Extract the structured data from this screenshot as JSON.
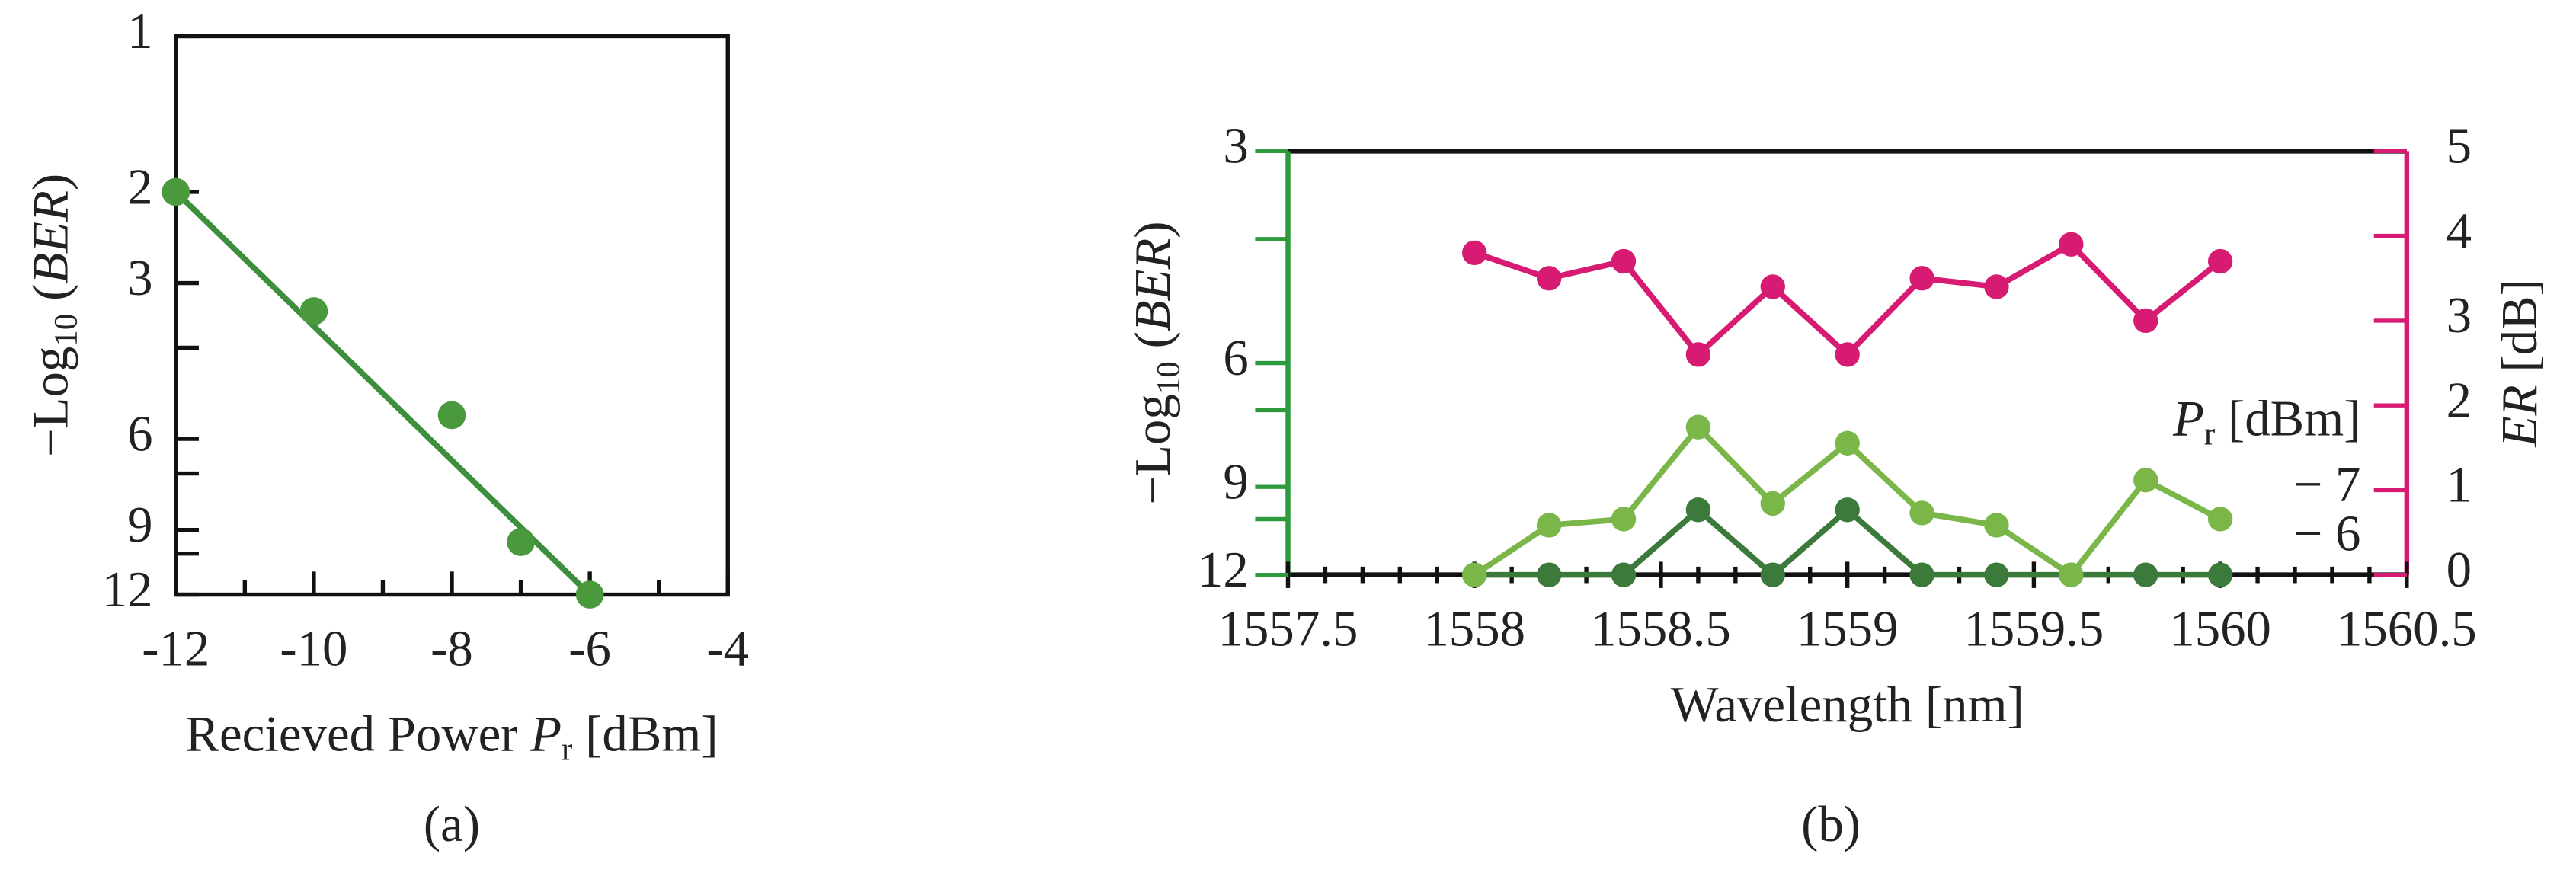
{
  "chart_data": [
    {
      "type": "scatter",
      "label": "(a)",
      "ylabel": [
        "−Log",
        "10",
        " (",
        "BER",
        ")"
      ],
      "xlabel": [
        "Recieved Power ",
        "P",
        "r",
        " [dBm]"
      ],
      "x": [
        -12,
        -10,
        -8,
        -7,
        -6
      ],
      "series": [
        {
          "color": "#4a9a3d",
          "values": [
            2,
            3.4,
            5.4,
            9.5,
            12
          ]
        }
      ],
      "fit": {
        "color": "#3d8f3d",
        "x": [
          -12,
          -6
        ],
        "values": [
          2,
          12
        ]
      },
      "xlim": [
        -12,
        -4
      ],
      "xticks": [
        -12,
        -10,
        -8,
        -6,
        -4
      ],
      "xminorticks": [
        -11,
        -9,
        -7,
        -5
      ],
      "ylim": [
        12,
        1
      ],
      "yscale": "log",
      "yticks": [
        1,
        2,
        3,
        6,
        9,
        12
      ],
      "yminorticks": [
        4,
        7,
        10
      ]
    },
    {
      "type": "line",
      "label": "(b)",
      "xlabel": "Wavelength [nm]",
      "ylabel": [
        "−Log",
        "10",
        " (",
        "BER",
        ")"
      ],
      "y2label": [
        "ER",
        " [dB]"
      ],
      "legend_title": [
        "P",
        "r",
        " [dBm]"
      ],
      "x": [
        1558,
        1558.2,
        1558.4,
        1558.6,
        1558.8,
        1559,
        1559.2,
        1559.4,
        1559.6,
        1559.8,
        1560
      ],
      "series": [
        {
          "name": "− 7",
          "color": "#7ab648",
          "values": [
            12,
            10.2,
            10,
            7.4,
            9.5,
            7.8,
            9.8,
            10.2,
            12,
            8.8,
            10
          ]
        },
        {
          "name": "− 6",
          "color": "#3b7a3b",
          "values": [
            12,
            12,
            12,
            9.7,
            12,
            9.7,
            12,
            12,
            12,
            12,
            12
          ]
        },
        {
          "color": "#d81b72",
          "axis": "y2",
          "values": [
            3.8,
            3.5,
            3.7,
            2.6,
            3.4,
            2.6,
            3.5,
            3.4,
            3.9,
            3.0,
            3.7
          ]
        }
      ],
      "xlim": [
        1557.5,
        1560.5
      ],
      "xticks": [
        1557.5,
        1558,
        1558.5,
        1559,
        1559.5,
        1560,
        1560.5
      ],
      "xminorticks": [
        1557.6,
        1557.7,
        1557.8,
        1557.9,
        1558.1,
        1558.2,
        1558.3,
        1558.4,
        1558.6,
        1558.7,
        1558.8,
        1558.9,
        1559.1,
        1559.2,
        1559.3,
        1559.4,
        1559.6,
        1559.7,
        1559.8,
        1559.9,
        1560.1,
        1560.2,
        1560.3,
        1560.4
      ],
      "ylim": [
        12,
        3
      ],
      "yscale": "log",
      "yticks": [
        3,
        6,
        9,
        12
      ],
      "yminorticks": [
        4,
        7,
        10
      ],
      "y2lim": [
        0,
        5
      ],
      "y2ticks": [
        0,
        1,
        2,
        3,
        4,
        5
      ],
      "axis_colors": {
        "y": "#2e9a3e",
        "y2": "#d81b72"
      }
    }
  ]
}
